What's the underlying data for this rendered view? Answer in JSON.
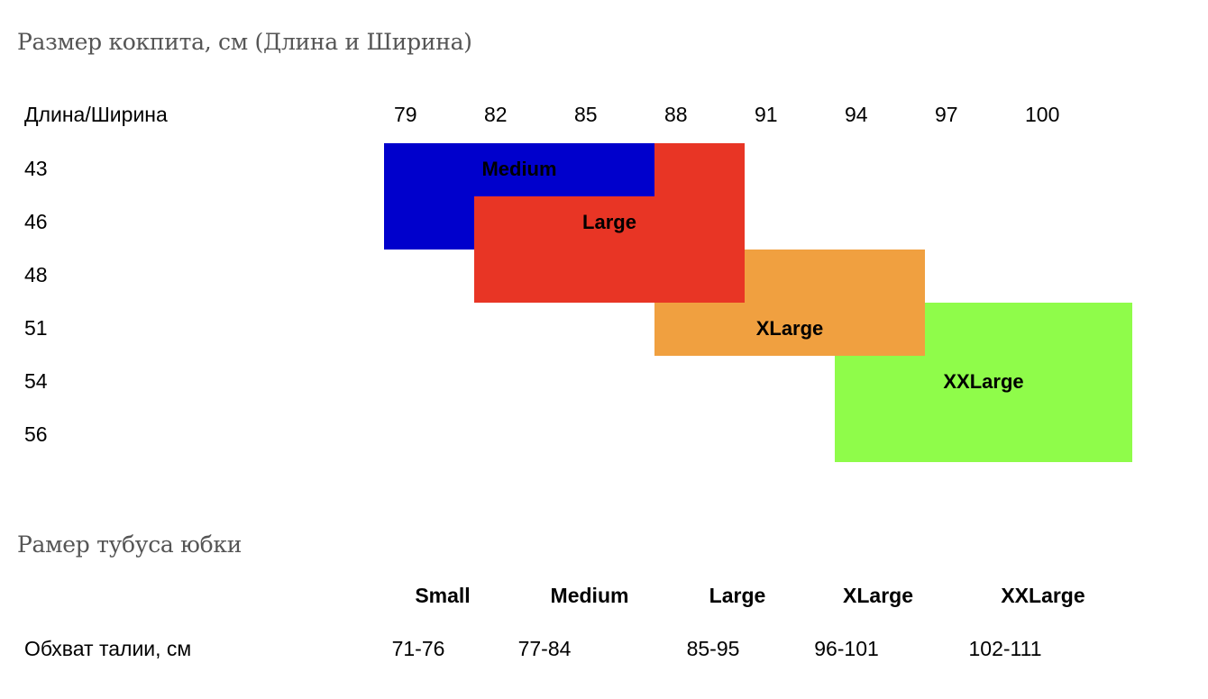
{
  "cockpit": {
    "title": "Размер кокпита, см  (Длина и Ширина)",
    "corner_label": "Длина/Ширина",
    "columns": [
      "79",
      "82",
      "85",
      "88",
      "91",
      "94",
      "97",
      "100"
    ],
    "rows": [
      "43",
      "46",
      "48",
      "51",
      "54",
      "56"
    ],
    "sizes": [
      {
        "name": "Medium",
        "color": "#0000cc"
      },
      {
        "name": "Large",
        "color": "#e83525"
      },
      {
        "name": "XLarge",
        "color": "#f0a040"
      },
      {
        "name": "XXLarge",
        "color": "#8ffc4a"
      }
    ]
  },
  "skirt": {
    "title": "Рамер тубуса юбки",
    "row_label": "Обхват талии, см",
    "sizes": [
      {
        "name": "Small",
        "value": "71-76"
      },
      {
        "name": "Medium",
        "value": "77-84"
      },
      {
        "name": "Large",
        "value": "85-95"
      },
      {
        "name": "XLarge",
        "value": "96-101"
      },
      {
        "name": "XXLarge",
        "value": "102-111"
      }
    ]
  }
}
